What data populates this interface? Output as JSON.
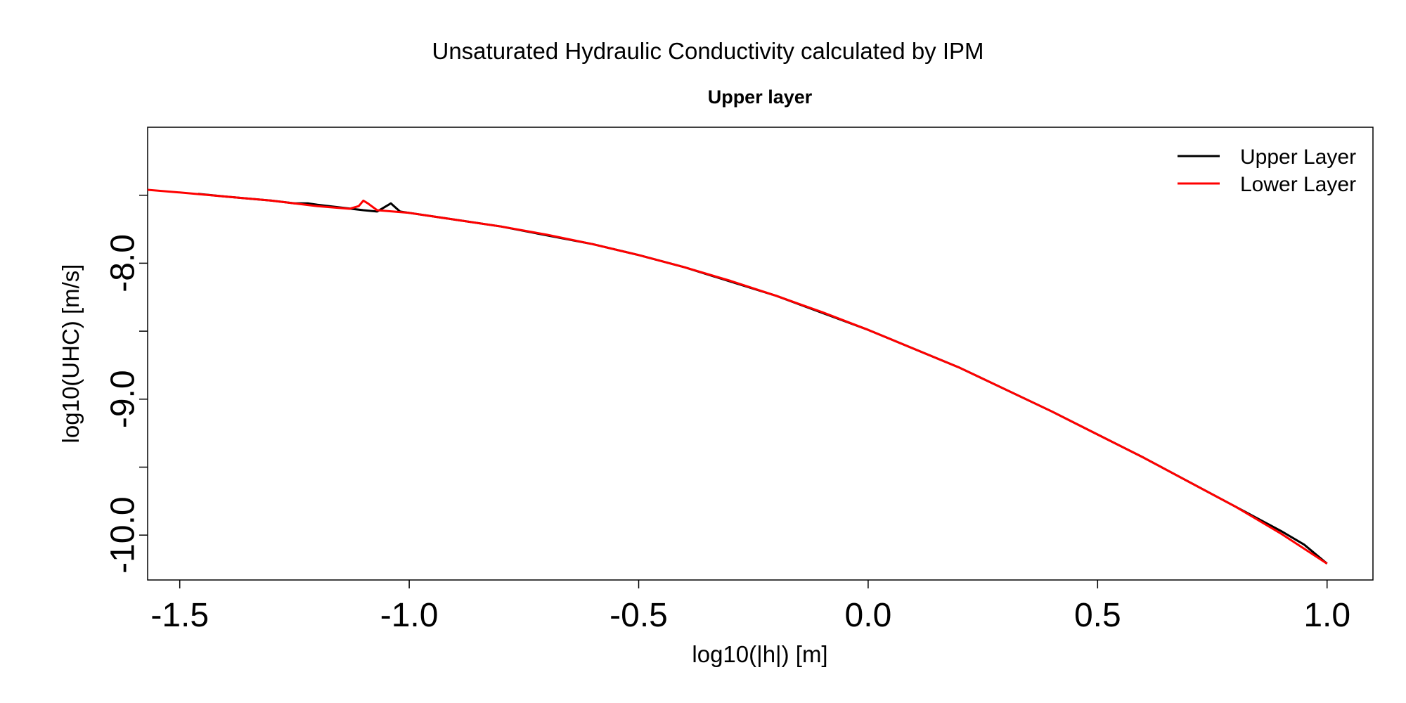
{
  "chart_data": {
    "type": "line",
    "title": "Unsaturated Hydraulic Conductivity calculated by IPM",
    "subtitle": "Upper layer",
    "xlabel": "log10(|h|) [m]",
    "ylabel": "log10(UHC) [m/s]",
    "xlim": [
      -1.57,
      1.1
    ],
    "ylim": [
      -10.33,
      -7.0
    ],
    "xticks": [
      -1.5,
      -1.0,
      -0.5,
      0.0,
      0.5,
      1.0
    ],
    "xtick_labels": [
      "-1.5",
      "-1.0",
      "-0.5",
      "0.0",
      "0.5",
      "1.0"
    ],
    "yticks": [
      -10.0,
      -9.5,
      -9.0,
      -8.5,
      -8.0,
      -7.5
    ],
    "ytick_labels": [
      "-10.0",
      "",
      "-9.0",
      "",
      "-8.0",
      ""
    ],
    "legend_position": "top-right",
    "grid": false,
    "series": [
      {
        "name": "Upper Layer",
        "color": "#000000",
        "x": [
          -1.46,
          -1.4,
          -1.3,
          -1.25,
          -1.22,
          -1.2,
          -1.15,
          -1.1,
          -1.07,
          -1.05,
          -1.04,
          -1.03,
          -1.02,
          -1.0,
          -0.9,
          -0.8,
          -0.6,
          -0.5,
          -0.4,
          -0.2,
          0.0,
          0.2,
          0.4,
          0.6,
          0.8,
          0.9,
          0.95,
          1.0
        ],
        "y": [
          -7.49,
          -7.51,
          -7.54,
          -7.56,
          -7.56,
          -7.57,
          -7.59,
          -7.61,
          -7.62,
          -7.58,
          -7.56,
          -7.59,
          -7.62,
          -7.63,
          -7.68,
          -7.73,
          -7.86,
          -7.94,
          -8.03,
          -8.24,
          -8.49,
          -8.77,
          -9.09,
          -9.43,
          -9.79,
          -9.97,
          -10.07,
          -10.21
        ]
      },
      {
        "name": "Lower Layer",
        "color": "#ff0000",
        "x": [
          -1.57,
          -1.5,
          -1.4,
          -1.3,
          -1.2,
          -1.13,
          -1.11,
          -1.1,
          -1.09,
          -1.07,
          -1.0,
          -0.9,
          -0.8,
          -0.7,
          -0.6,
          -0.5,
          -0.4,
          -0.3,
          -0.2,
          -0.1,
          0.0,
          0.1,
          0.2,
          0.3,
          0.4,
          0.5,
          0.6,
          0.7,
          0.8,
          0.9,
          1.0
        ],
        "y": [
          -7.46,
          -7.48,
          -7.51,
          -7.54,
          -7.58,
          -7.6,
          -7.58,
          -7.54,
          -7.56,
          -7.61,
          -7.63,
          -7.68,
          -7.73,
          -7.79,
          -7.86,
          -7.94,
          -8.03,
          -8.13,
          -8.24,
          -8.36,
          -8.49,
          -8.63,
          -8.77,
          -8.93,
          -9.09,
          -9.26,
          -9.43,
          -9.61,
          -9.79,
          -9.99,
          -10.21
        ]
      }
    ]
  }
}
